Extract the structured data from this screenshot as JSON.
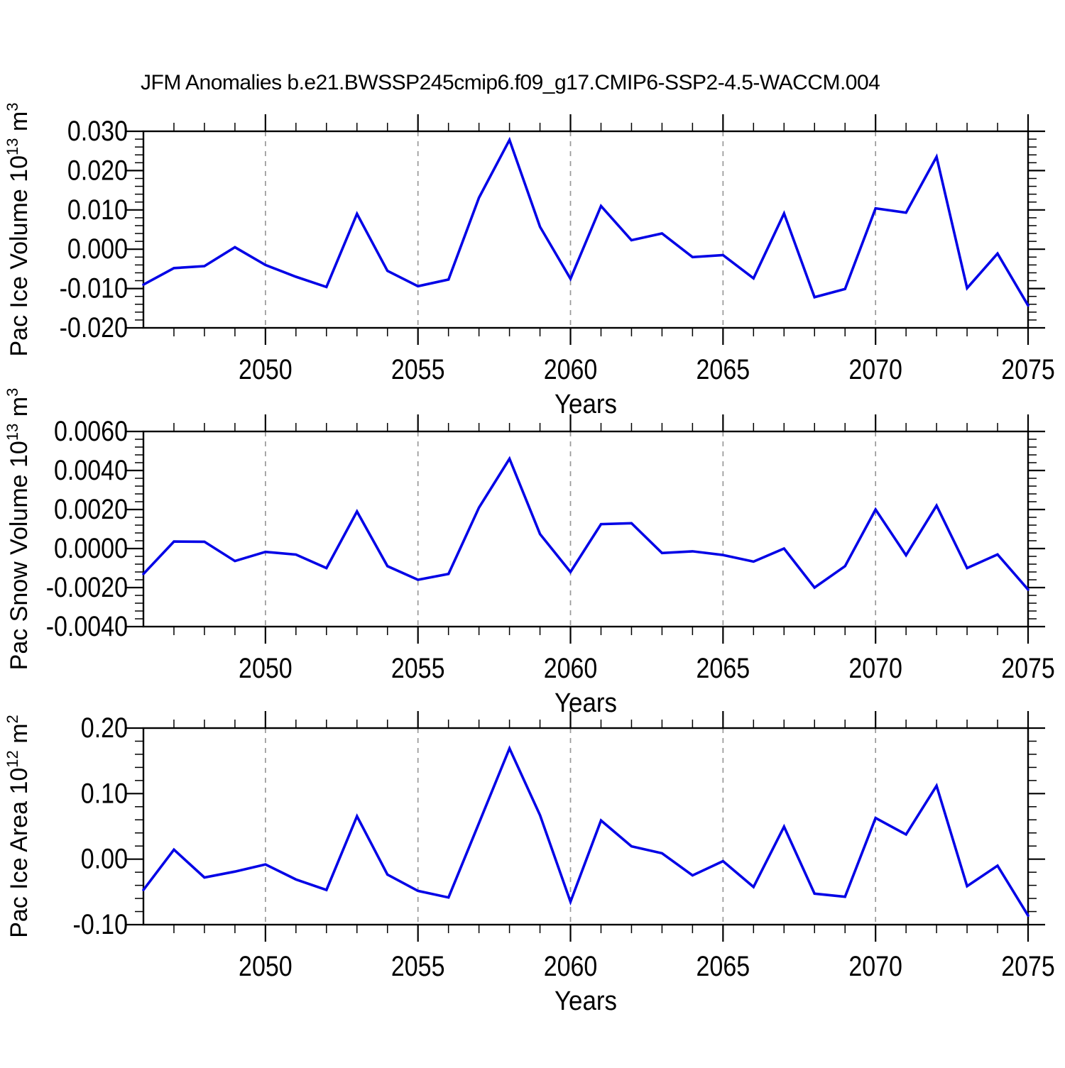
{
  "title": "JFM Anomalies b.e21.BWSSP245cmip6.f09_g17.CMIP6-SSP2-4.5-WACCM.004",
  "style": {
    "line_color": "#0202e6",
    "axis_color": "#000000",
    "grid_color": "#999999",
    "text_color": "#000000",
    "background": "#ffffff"
  },
  "x_axis": {
    "label": "Years",
    "range": [
      2046,
      2075
    ],
    "major_ticks": [
      {
        "year": 2050,
        "label": "2050"
      },
      {
        "year": 2055,
        "label": "2055"
      },
      {
        "year": 2060,
        "label": "2060"
      },
      {
        "year": 2065,
        "label": "2065"
      },
      {
        "year": 2070,
        "label": "2070"
      },
      {
        "year": 2075,
        "label": "2075"
      }
    ],
    "grid_years": [
      2050,
      2055,
      2060,
      2065,
      2070
    ]
  },
  "chart_data": [
    {
      "type": "line",
      "name": "pac-ice-volume",
      "ylabel_parts": [
        {
          "text": "Pac Ice Volume 10"
        },
        {
          "text": "13",
          "sup": true
        },
        {
          "text": " m"
        },
        {
          "text": "3",
          "sup": true
        }
      ],
      "xlabel": "Years",
      "x": [
        2046,
        2047,
        2048,
        2049,
        2050,
        2051,
        2052,
        2053,
        2054,
        2055,
        2056,
        2057,
        2058,
        2059,
        2060,
        2061,
        2062,
        2063,
        2064,
        2065,
        2066,
        2067,
        2068,
        2069,
        2070,
        2071,
        2072,
        2073,
        2074,
        2075
      ],
      "values": [
        -0.009,
        -0.0048,
        -0.0043,
        0.0005,
        -0.004,
        -0.007,
        -0.0096,
        0.009,
        -0.0055,
        -0.0094,
        -0.0077,
        0.0131,
        0.0278,
        0.0057,
        -0.0075,
        0.011,
        0.0023,
        0.004,
        -0.002,
        -0.0015,
        -0.0074,
        0.0091,
        -0.0122,
        -0.0101,
        0.0104,
        0.0093,
        0.0235,
        -0.0099,
        -0.0011,
        -0.0143
      ],
      "ylim": [
        -0.02,
        0.03
      ],
      "yminor_step": 0.002,
      "yticks": [
        {
          "v": 0.03,
          "label": "0.030"
        },
        {
          "v": 0.02,
          "label": "0.020"
        },
        {
          "v": 0.01,
          "label": "0.010"
        },
        {
          "v": 0.0,
          "label": "0.000"
        },
        {
          "v": -0.01,
          "label": "-0.010"
        },
        {
          "v": -0.02,
          "label": "-0.020"
        }
      ]
    },
    {
      "type": "line",
      "name": "pac-snow-volume",
      "ylabel_parts": [
        {
          "text": "Pac Snow Volume 10"
        },
        {
          "text": "13",
          "sup": true
        },
        {
          "text": " m"
        },
        {
          "text": "3",
          "sup": true
        }
      ],
      "xlabel": "Years",
      "x": [
        2046,
        2047,
        2048,
        2049,
        2050,
        2051,
        2052,
        2053,
        2054,
        2055,
        2056,
        2057,
        2058,
        2059,
        2060,
        2061,
        2062,
        2063,
        2064,
        2065,
        2066,
        2067,
        2068,
        2069,
        2070,
        2071,
        2072,
        2073,
        2074,
        2075
      ],
      "values": [
        -0.0013,
        0.00036,
        0.00035,
        -0.00064,
        -0.00017,
        -0.00031,
        -0.001,
        0.0019,
        -0.0009,
        -0.0016,
        -0.0013,
        0.0021,
        0.0046,
        0.00074,
        -0.0012,
        0.00125,
        0.0013,
        -0.00023,
        -0.00014,
        -0.00033,
        -0.00067,
        0.0,
        -0.002,
        -0.0009,
        0.002,
        -0.00034,
        0.0022,
        -0.001,
        -0.0003,
        -0.0021
      ],
      "ylim": [
        -0.004,
        0.006
      ],
      "yminor_step": 0.0004,
      "yticks": [
        {
          "v": 0.006,
          "label": "0.0060"
        },
        {
          "v": 0.004,
          "label": "0.0040"
        },
        {
          "v": 0.002,
          "label": "0.0020"
        },
        {
          "v": 0.0,
          "label": "0.0000"
        },
        {
          "v": -0.002,
          "label": "-0.0020"
        },
        {
          "v": -0.004,
          "label": "-0.0040"
        }
      ]
    },
    {
      "type": "line",
      "name": "pac-ice-area",
      "ylabel_parts": [
        {
          "text": "Pac Ice Area 10"
        },
        {
          "text": "12",
          "sup": true
        },
        {
          "text": " m"
        },
        {
          "text": "2",
          "sup": true
        }
      ],
      "xlabel": "Years",
      "x": [
        2046,
        2047,
        2048,
        2049,
        2050,
        2051,
        2052,
        2053,
        2054,
        2055,
        2056,
        2057,
        2058,
        2059,
        2060,
        2061,
        2062,
        2063,
        2064,
        2065,
        2066,
        2067,
        2068,
        2069,
        2070,
        2071,
        2072,
        2073,
        2074,
        2075
      ],
      "values": [
        -0.047,
        0.0145,
        -0.028,
        -0.019,
        -0.008,
        -0.031,
        -0.047,
        0.0655,
        -0.0235,
        -0.0485,
        -0.0585,
        0.055,
        0.169,
        0.067,
        -0.065,
        0.059,
        0.0196,
        0.009,
        -0.0248,
        -0.0031,
        -0.0425,
        0.0496,
        -0.0527,
        -0.0574,
        0.0628,
        0.0377,
        0.112,
        -0.0413,
        -0.01,
        -0.0861
      ],
      "ylim": [
        -0.1,
        0.2
      ],
      "yminor_step": 0.02,
      "yticks": [
        {
          "v": 0.2,
          "label": "0.20"
        },
        {
          "v": 0.1,
          "label": "0.10"
        },
        {
          "v": 0.0,
          "label": "0.00"
        },
        {
          "v": -0.1,
          "label": "-0.10"
        }
      ]
    }
  ]
}
